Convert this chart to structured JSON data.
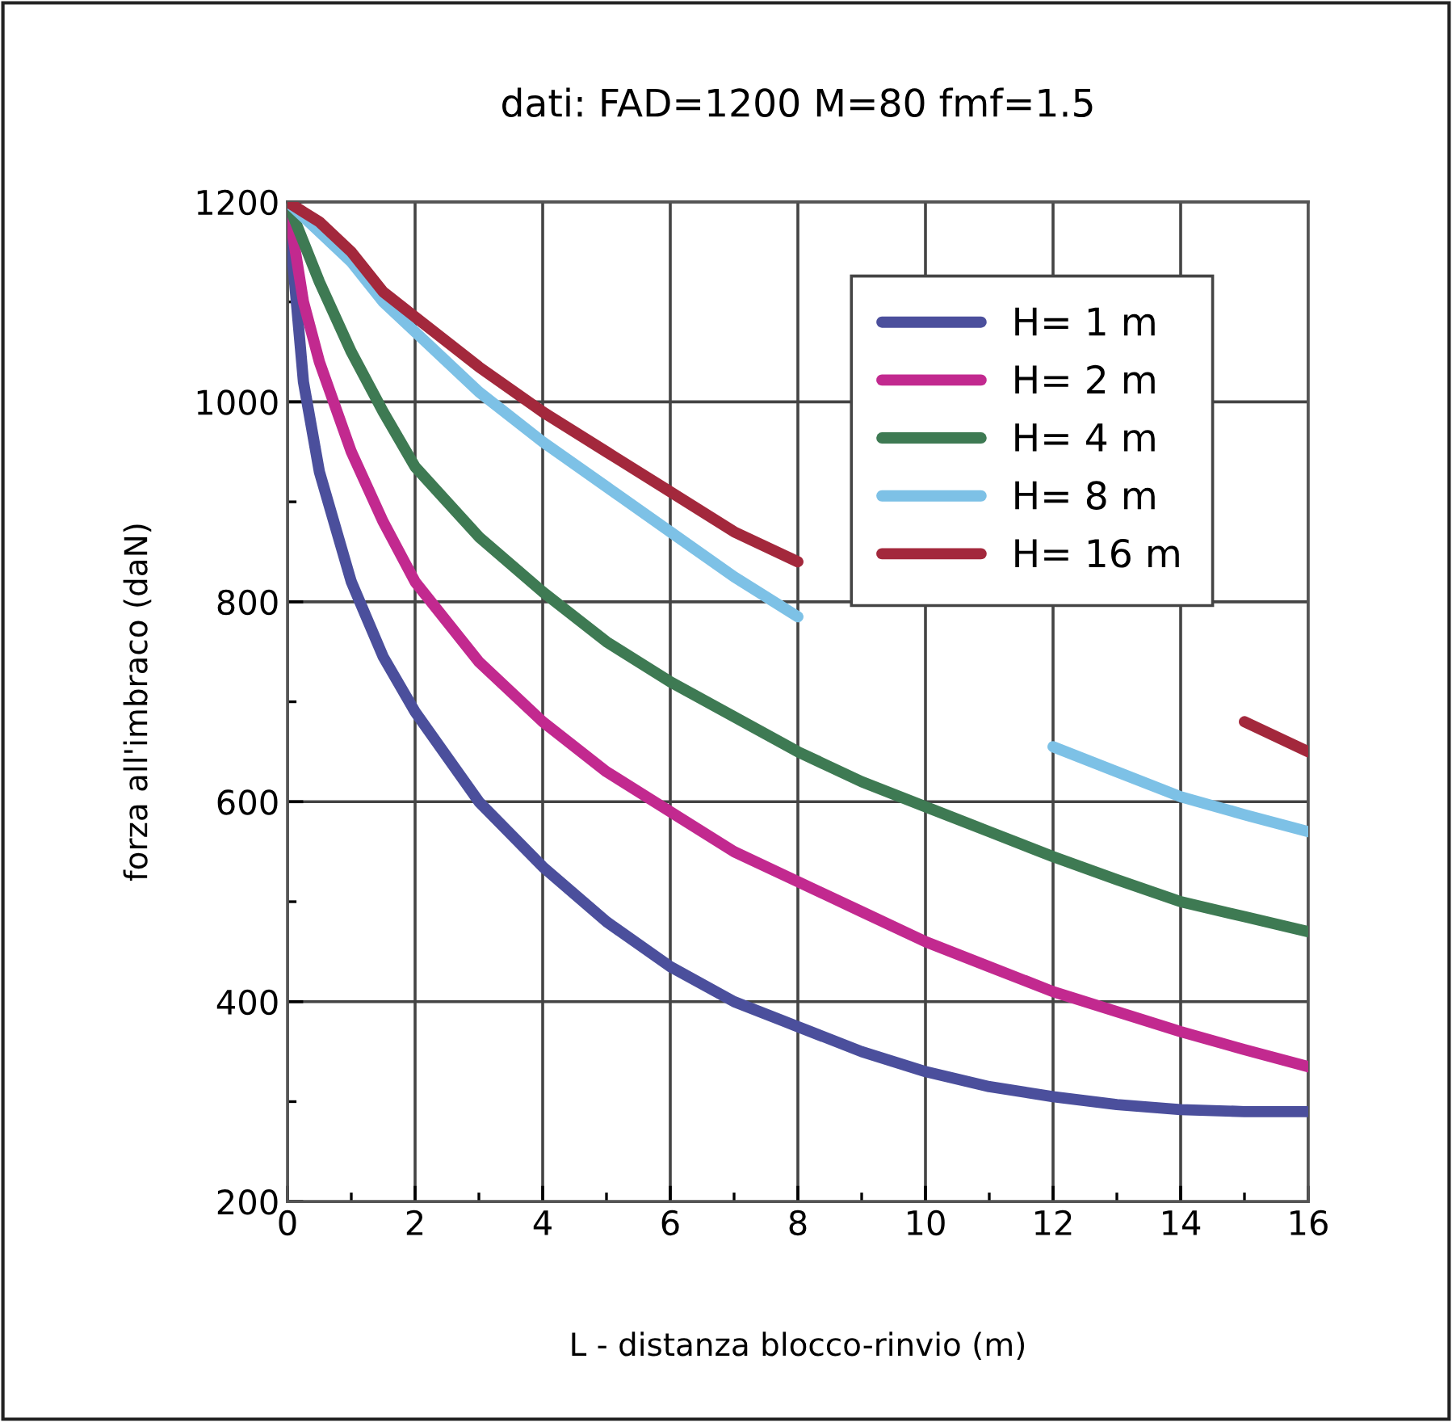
{
  "chart_data": {
    "type": "line",
    "title": "dati: FAD=1200 M=80 fmf=1.5",
    "xlabel": "L - distanza blocco-rinvio (m)",
    "ylabel": "forza all'imbraco (daN)",
    "x": [
      0,
      0.25,
      0.5,
      1,
      1.5,
      2,
      3,
      4,
      5,
      6,
      7,
      8,
      9,
      10,
      11,
      12,
      13,
      14,
      15,
      16
    ],
    "series": [
      {
        "name": "H= 1 m",
        "color": "#4b4f9c",
        "values": [
          1200,
          1020,
          930,
          820,
          745,
          690,
          600,
          535,
          480,
          435,
          400,
          375,
          350,
          330,
          315,
          305,
          297,
          292,
          290,
          290
        ]
      },
      {
        "name": "H= 2 m",
        "color": "#c2298f",
        "values": [
          1200,
          1100,
          1040,
          950,
          880,
          820,
          740,
          680,
          630,
          590,
          550,
          520,
          490,
          460,
          435,
          410,
          390,
          370,
          352,
          335
        ]
      },
      {
        "name": "H= 4 m",
        "color": "#3e7a53",
        "values": [
          1200,
          1160,
          1120,
          1050,
          990,
          935,
          865,
          810,
          760,
          720,
          685,
          650,
          620,
          595,
          570,
          545,
          522,
          500,
          485,
          470
        ]
      },
      {
        "name": "H= 8 m",
        "color": "#7dc1e6",
        "values": [
          1200,
          1185,
          1170,
          1140,
          1100,
          1070,
          1010,
          960,
          915,
          870,
          825,
          785,
          null,
          null,
          null,
          655,
          630,
          605,
          587,
          570
        ]
      },
      {
        "name": "H= 16 m",
        "color": "#a3283c",
        "values": [
          1200,
          1190,
          1180,
          1150,
          1110,
          1085,
          1035,
          990,
          950,
          910,
          870,
          840,
          null,
          null,
          null,
          null,
          null,
          null,
          680,
          650
        ]
      }
    ],
    "xlim": [
      0,
      16
    ],
    "ylim": [
      200,
      1200
    ],
    "xticks": [
      0,
      {
        "value": 1,
        "label": null
      },
      2,
      {
        "value": 3,
        "label": null
      },
      4,
      {
        "value": 5,
        "label": null
      },
      6,
      {
        "value": 7,
        "label": null
      },
      8,
      {
        "value": 9,
        "label": null
      },
      10,
      {
        "value": 11,
        "label": null
      },
      12,
      {
        "value": 13,
        "label": null
      },
      14,
      {
        "value": 15,
        "label": null
      },
      16
    ],
    "yticks": [
      200,
      {
        "value": 300,
        "label": null
      },
      400,
      {
        "value": 500,
        "label": null
      },
      600,
      {
        "value": 700,
        "label": null
      },
      800,
      {
        "value": 900,
        "label": null
      },
      1000,
      {
        "value": 1100,
        "label": null
      },
      1200
    ],
    "grid": true,
    "legend": "top right",
    "marker": "none",
    "line_style": "solid"
  }
}
